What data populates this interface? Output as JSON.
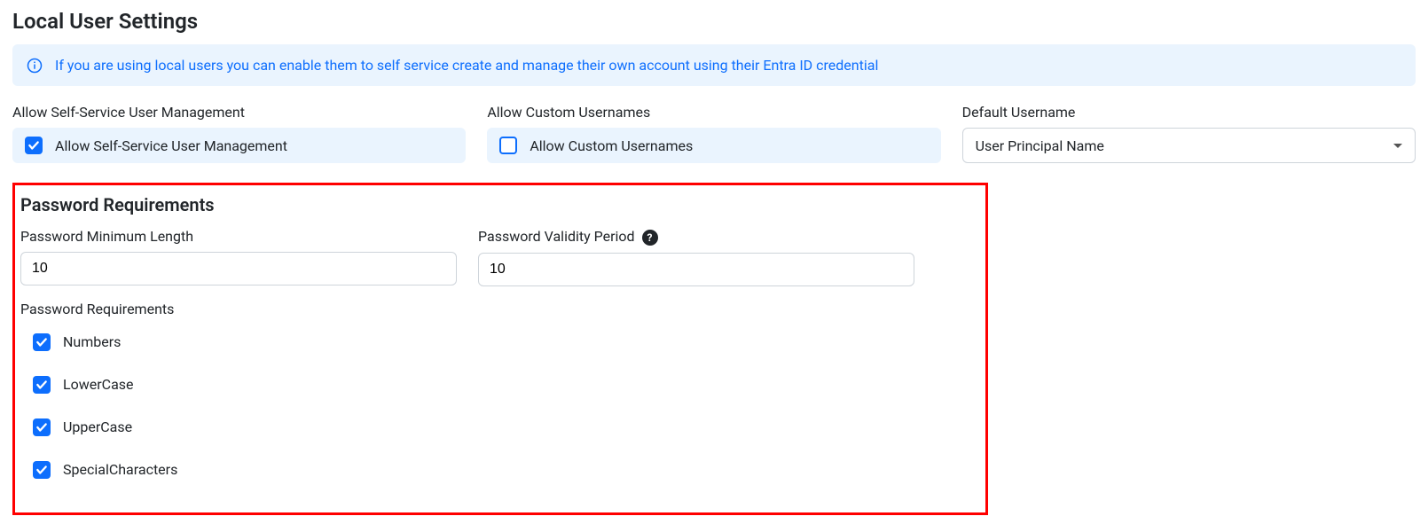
{
  "colors": {
    "accent": "#0d6efd",
    "accent_rgb": "13,110,253",
    "banner_bg": "#eaf4fe",
    "banner_text": "#0d6efd",
    "checkbox_pill_bg": "#eaf4fe",
    "border": "#ced4da",
    "highlight": "#ff0000"
  },
  "header": {
    "title": "Local User Settings"
  },
  "banner": {
    "text": "If you are using local users you can enable them to self service create and manage their own account using their Entra ID credential"
  },
  "fields": {
    "self_service": {
      "label": "Allow Self-Service User Management",
      "checkbox_label": "Allow Self-Service User Management",
      "checked": true
    },
    "custom_usernames": {
      "label": "Allow Custom Usernames",
      "checkbox_label": "Allow Custom Usernames",
      "checked": false
    },
    "default_username": {
      "label": "Default Username",
      "value": "User Principal Name"
    }
  },
  "password": {
    "title": "Password Requirements",
    "min_length": {
      "label": "Password Minimum Length",
      "value": "10"
    },
    "validity": {
      "label": "Password Validity Period",
      "value": "10"
    },
    "requirements_label": "Password Requirements",
    "requirements": [
      {
        "label": "Numbers",
        "checked": true
      },
      {
        "label": "LowerCase",
        "checked": true
      },
      {
        "label": "UpperCase",
        "checked": true
      },
      {
        "label": "SpecialCharacters",
        "checked": true
      }
    ]
  }
}
